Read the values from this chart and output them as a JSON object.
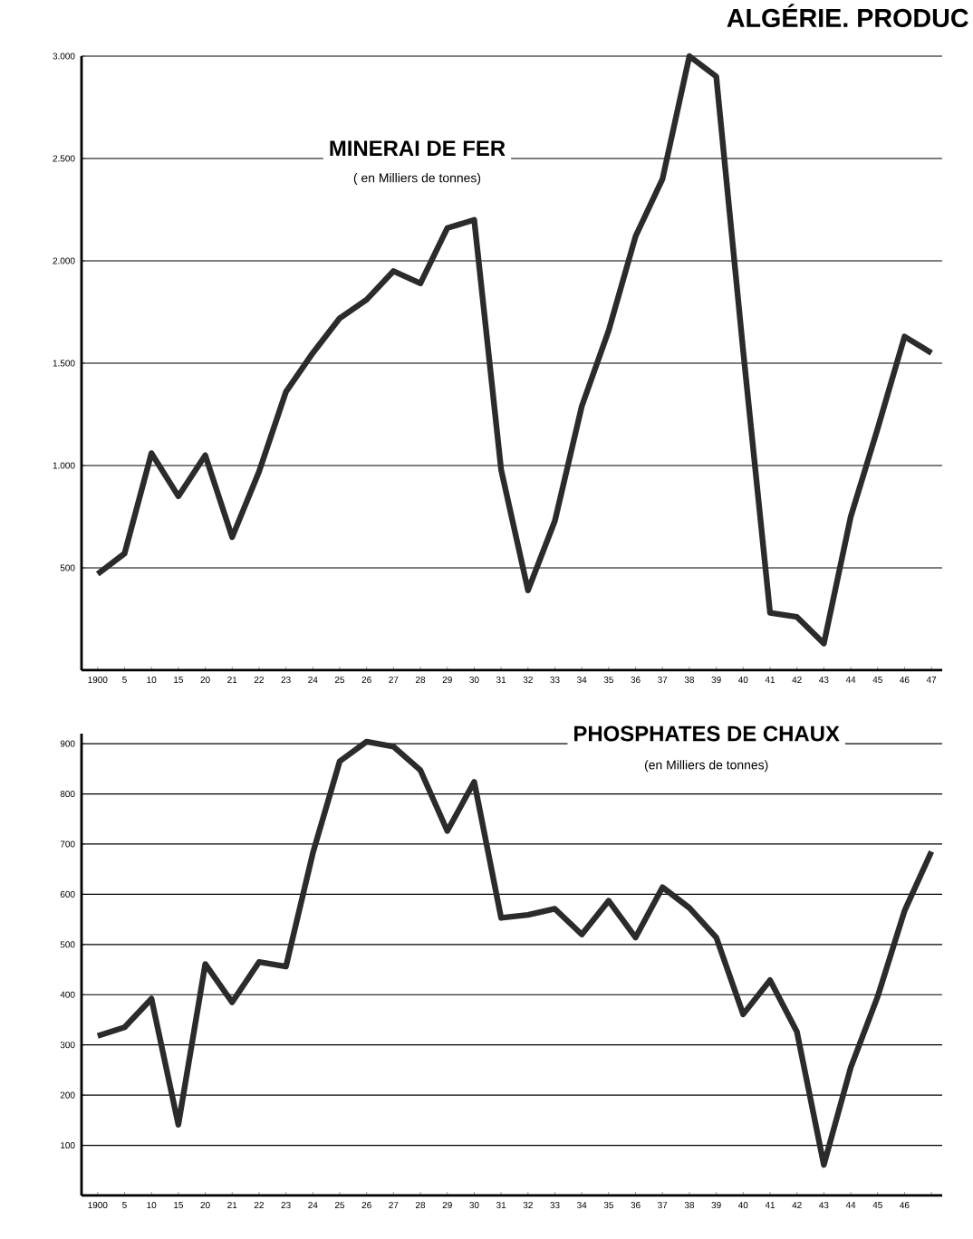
{
  "chart_data": [
    {
      "type": "line",
      "title": "MINERAI DE FER",
      "subtitle": "( en Milliers de tonnes)",
      "annotations": [
        "ALGÉRIE. PRODUC"
      ],
      "categories": [
        "1900",
        "5",
        "10",
        "15",
        "20",
        "21",
        "22",
        "23",
        "24",
        "25",
        "26",
        "27",
        "28",
        "29",
        "30",
        "31",
        "32",
        "33",
        "34",
        "35",
        "36",
        "37",
        "38",
        "39",
        "40",
        "41",
        "42",
        "43",
        "44",
        "45",
        "46",
        "47"
      ],
      "series": [
        {
          "color": "#2b2b2b",
          "values": [
            470,
            570,
            1060,
            850,
            1050,
            650,
            970,
            1360,
            1550,
            1720,
            1810,
            1950,
            1890,
            2160,
            2200,
            980,
            390,
            730,
            1290,
            1660,
            2120,
            2400,
            3000,
            2900,
            1560,
            280,
            260,
            130,
            750,
            1180,
            1630,
            1550
          ]
        }
      ],
      "ylim": [
        0,
        3000
      ],
      "yticks": [
        {
          "value": 500,
          "label": "500"
        },
        {
          "value": 1000,
          "label": "1.000"
        },
        {
          "value": 1500,
          "label": "1.500"
        },
        {
          "value": 2000,
          "label": "2.000"
        },
        {
          "value": 2500,
          "label": "2.500"
        },
        {
          "value": 3000,
          "label": "3.000"
        }
      ],
      "grid": "y"
    },
    {
      "type": "line",
      "title": "PHOSPHATES DE CHAUX",
      "subtitle": "(en Milliers de tonnes)",
      "categories": [
        "1900",
        "5",
        "10",
        "15",
        "20",
        "21",
        "22",
        "23",
        "24",
        "25",
        "26",
        "27",
        "28",
        "29",
        "30",
        "31",
        "32",
        "33",
        "34",
        "35",
        "36",
        "37",
        "38",
        "39",
        "40",
        "41",
        "42",
        "43",
        "44",
        "45",
        "46",
        null
      ],
      "series": [
        {
          "color": "#2b2b2b",
          "values": [
            318,
            335,
            392,
            141,
            461,
            385,
            465,
            456,
            682,
            865,
            904,
            894,
            847,
            726,
            824,
            553,
            559,
            571,
            520,
            587,
            514,
            614,
            573,
            514,
            361,
            429,
            326,
            61,
            255,
            396,
            567,
            685
          ]
        }
      ],
      "ylim": [
        0,
        920
      ],
      "yticks": [
        100,
        200,
        300,
        400,
        500,
        600,
        700,
        800,
        900
      ],
      "grid": "y"
    }
  ]
}
